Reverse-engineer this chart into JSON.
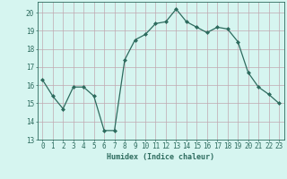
{
  "x": [
    0,
    1,
    2,
    3,
    4,
    5,
    6,
    7,
    8,
    9,
    10,
    11,
    12,
    13,
    14,
    15,
    16,
    17,
    18,
    19,
    20,
    21,
    22,
    23
  ],
  "y": [
    16.3,
    15.4,
    14.7,
    15.9,
    15.9,
    15.4,
    13.5,
    13.5,
    17.4,
    18.5,
    18.8,
    19.4,
    19.5,
    20.2,
    19.5,
    19.2,
    18.9,
    19.2,
    19.1,
    18.4,
    16.7,
    15.9,
    15.5,
    15.0
  ],
  "xlim": [
    -0.5,
    23.5
  ],
  "ylim": [
    13,
    20.6
  ],
  "yticks": [
    13,
    14,
    15,
    16,
    17,
    18,
    19,
    20
  ],
  "xticks": [
    0,
    1,
    2,
    3,
    4,
    5,
    6,
    7,
    8,
    9,
    10,
    11,
    12,
    13,
    14,
    15,
    16,
    17,
    18,
    19,
    20,
    21,
    22,
    23
  ],
  "xlabel": "Humidex (Indice chaleur)",
  "line_color": "#2d6b5e",
  "marker": "D",
  "marker_size": 2.0,
  "bg_color": "#d6f5f0",
  "grid_color": "#c0a8b0",
  "text_color": "#2d6b5e",
  "font_family": "monospace",
  "tick_fontsize": 5.5,
  "xlabel_fontsize": 6.0,
  "linewidth": 0.9
}
